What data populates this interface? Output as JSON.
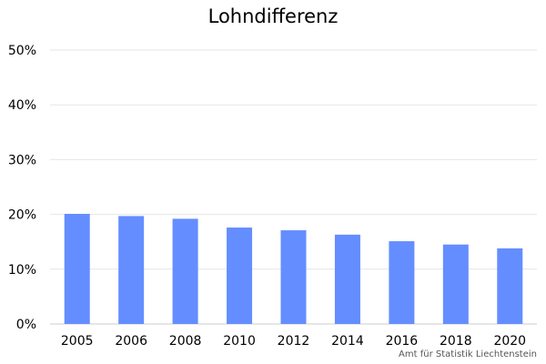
{
  "chart_data": {
    "type": "bar",
    "title": "Lohndifferenz",
    "xlabel": "",
    "ylabel": "",
    "categories": [
      "2005",
      "2006",
      "2008",
      "2010",
      "2012",
      "2014",
      "2016",
      "2018",
      "2020"
    ],
    "values": [
      20.1,
      19.7,
      19.2,
      17.6,
      17.1,
      16.3,
      15.1,
      14.5,
      13.8
    ],
    "ylim": [
      0,
      50
    ],
    "yticks": [
      "0%",
      "10%",
      "20%",
      "30%",
      "40%",
      "50%"
    ],
    "grid": true,
    "legend": "none",
    "source": "Amt für Statistik Liechtenstein"
  },
  "colors": {
    "bar": "#648dff",
    "grid": "#e6e6e6",
    "axis": "#cccccc",
    "text": "#000000",
    "source_text": "#555555"
  }
}
